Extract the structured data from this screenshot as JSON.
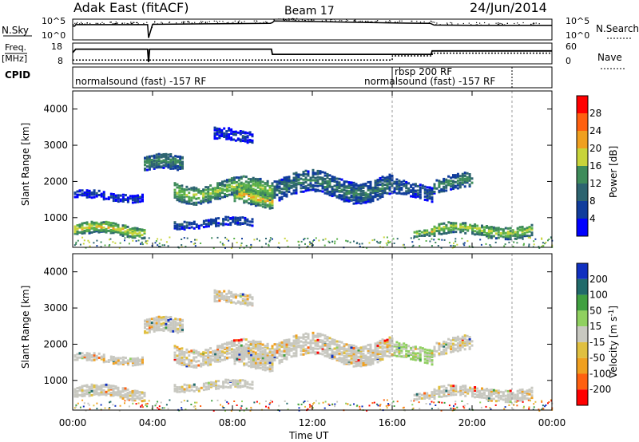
{
  "header": {
    "station": "Adak East (fitACF)",
    "beam": "Beam 17",
    "date": "24/Jun/2014"
  },
  "side_labels": {
    "nsky": "N.Sky",
    "nsearch": "N.Search",
    "freq_line1": "Freq.",
    "freq_line2": "[MHz]",
    "nave": "Nave",
    "cpid": "CPID"
  },
  "strip_ticks": {
    "noise_left": [
      "10^5",
      "10^0"
    ],
    "noise_right": [
      "10^5",
      "10^0"
    ],
    "freq_left": [
      "18",
      "8"
    ],
    "nave_right": [
      "60",
      "0"
    ]
  },
  "cpid_labels": [
    {
      "text": "normalsound (fast) -157 RF",
      "start_hour": 0.0
    },
    {
      "text": "rbsp 200 RF",
      "start_hour": 16.0
    },
    {
      "text": "normalsound (fast) -157 RF",
      "start_hour": 18.0
    }
  ],
  "chart_data": [
    {
      "type": "line",
      "name": "noise",
      "xlim": [
        0,
        24
      ],
      "series": [
        {
          "name": "N.Sky",
          "x": [
            0,
            0.1,
            0.15,
            3.75,
            3.8,
            4,
            8,
            9.9,
            10,
            10.1,
            12,
            14,
            16,
            17.9,
            18.1,
            20,
            22,
            24
          ],
          "values": [
            4.0,
            4.0,
            4.4,
            4.4,
            0.6,
            4.5,
            4.7,
            4.8,
            5.0,
            5.5,
            5.3,
            5.1,
            4.9,
            4.8,
            4.3,
            4.2,
            4.2,
            4.2
          ]
        }
      ]
    },
    {
      "type": "line",
      "name": "frequency",
      "xlim": [
        0,
        24
      ],
      "series": [
        {
          "name": "Freq.",
          "x": [
            0,
            0.15,
            3.75,
            3.8,
            3.85,
            9.95,
            10.0,
            17.95,
            18.0,
            24
          ],
          "values": [
            13.5,
            15.5,
            15.5,
            8.0,
            15.5,
            15.5,
            12.5,
            12.5,
            14.5,
            14.5
          ]
        },
        {
          "name": "Nave",
          "x": [
            0,
            16,
            16.01,
            18,
            18.01,
            24
          ],
          "values": [
            11,
            11,
            23,
            23,
            31,
            31
          ]
        }
      ]
    },
    {
      "type": "heatmap",
      "title": "Power",
      "xlabel": "",
      "ylabel": "Slant Range [km]",
      "xlim": [
        0,
        24
      ],
      "ylim": [
        180,
        4500
      ],
      "colorbar": {
        "label": "Power [dB]",
        "range": [
          0,
          32
        ],
        "ticks": [
          4,
          8,
          12,
          16,
          20,
          24,
          28
        ]
      },
      "echo_bands": [
        {
          "t0": 0.0,
          "t1": 3.6,
          "r_center": 700,
          "r_width": 160,
          "peak_db": 24
        },
        {
          "t0": 0.0,
          "t1": 3.5,
          "r_center": 1650,
          "r_width": 120,
          "peak_db": 6
        },
        {
          "t0": 3.5,
          "t1": 5.5,
          "r_center": 2500,
          "r_width": 200,
          "peak_db": 14
        },
        {
          "t0": 5.0,
          "t1": 10.0,
          "r_center": 1800,
          "r_width": 250,
          "peak_db": 20
        },
        {
          "t0": 8.0,
          "t1": 10.0,
          "r_center": 1600,
          "r_width": 200,
          "peak_db": 26
        },
        {
          "t0": 10.0,
          "t1": 16.0,
          "r_center": 1900,
          "r_width": 300,
          "peak_db": 12
        },
        {
          "t0": 16.0,
          "t1": 18.0,
          "r_center": 1800,
          "r_width": 200,
          "peak_db": 10
        },
        {
          "t0": 18.0,
          "t1": 20.0,
          "r_center": 2000,
          "r_width": 200,
          "peak_db": 14
        },
        {
          "t0": 18.0,
          "t1": 23.0,
          "r_center": 700,
          "r_width": 150,
          "peak_db": 22
        },
        {
          "t0": 17.0,
          "t1": 18.0,
          "r_center": 600,
          "r_width": 100,
          "peak_db": 22
        },
        {
          "t0": 5.0,
          "t1": 9.0,
          "r_center": 900,
          "r_width": 120,
          "peak_db": 8
        },
        {
          "t0": 7.0,
          "t1": 9.0,
          "r_center": 3300,
          "r_width": 150,
          "peak_db": 6
        }
      ]
    },
    {
      "type": "heatmap",
      "title": "Velocity",
      "xlabel": "Time UT",
      "ylabel": "Slant Range [km]",
      "xlim": [
        0,
        24
      ],
      "ylim": [
        180,
        4500
      ],
      "x_ticks": [
        "00:00",
        "04:00",
        "08:00",
        "12:00",
        "16:00",
        "20:00",
        "00:00"
      ],
      "y_ticks": [
        1000,
        2000,
        3000,
        4000
      ],
      "colorbar": {
        "label": "Velocity [m s-1]",
        "ticks": [
          "200",
          "100",
          "50",
          "15",
          "-15",
          "-50",
          "-100",
          "-200"
        ]
      },
      "dominant_velocity": "-15..15"
    }
  ],
  "labels": {
    "ylabel": "Slant Range [km]",
    "xlabel": "Time UT",
    "power_cb_label": "Power [dB]",
    "velocity_cb_label": "Velocity [m s",
    "velocity_cb_sup": "-1",
    "velocity_cb_tail": "]"
  },
  "colors": {
    "power": [
      "#0000ff",
      "#103c9c",
      "#2d6470",
      "#3e8c5a",
      "#5ab04a",
      "#c8d43a",
      "#f0a020",
      "#ff6010",
      "#ff0000"
    ],
    "velocity": [
      "#1030c0",
      "#206a6a",
      "#40a040",
      "#90d060",
      "#c8c8c0",
      "#e0c040",
      "#f0a020",
      "#ff6010",
      "#ff0000"
    ]
  }
}
